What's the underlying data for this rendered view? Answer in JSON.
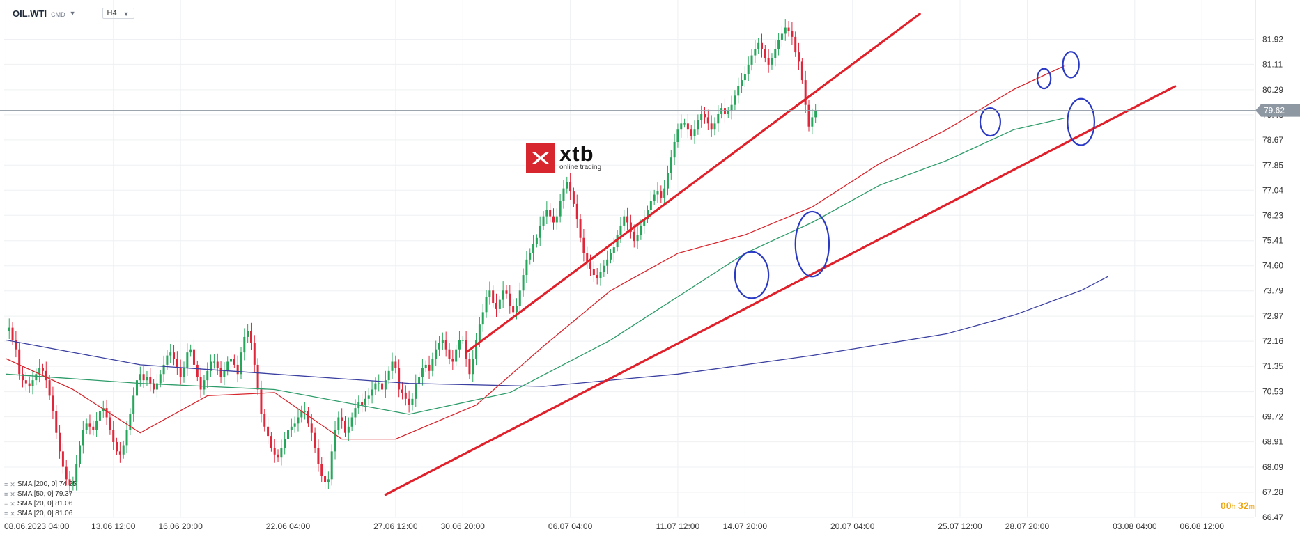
{
  "toolbar": {
    "symbol": "OIL.WTI",
    "symbol_type": "CMD",
    "timeframe": "H4"
  },
  "logo": {
    "name": "xtb",
    "tagline": "online trading"
  },
  "timer": {
    "hours": "00",
    "h_unit": "h",
    "minutes": "32",
    "m_unit": "m"
  },
  "legend": [
    {
      "label": "SMA [200, 0] 74.25",
      "color": "#3a3fa0"
    },
    {
      "label": "SMA [50, 0] 79.37",
      "color": "#2e9c6a"
    },
    {
      "label": "SMA [20, 0] 81.06",
      "color": "#d7262d"
    },
    {
      "label": "SMA [20, 0] 81.06",
      "color": "#d7262d"
    }
  ],
  "colors": {
    "up": "#26a65b",
    "down": "#e0263a",
    "trend": "#e0202a",
    "circle": "#2b3ac4",
    "current": "#8e98a3"
  },
  "chart_data": {
    "type": "candlestick",
    "symbol": "OIL.WTI",
    "timeframe": "H4",
    "ylim": [
      66.47,
      82.74
    ],
    "y_ticks": [
      "81.92",
      "81.11",
      "80.29",
      "79.48",
      "78.67",
      "77.85",
      "77.04",
      "76.23",
      "75.41",
      "74.60",
      "73.79",
      "72.97",
      "72.16",
      "71.35",
      "70.53",
      "69.72",
      "68.91",
      "68.09",
      "67.28",
      "66.47"
    ],
    "x_ticks": [
      "08.06.2023 04:00",
      "13.06 12:00",
      "16.06 20:00",
      "22.06 04:00",
      "27.06 12:00",
      "30.06 20:00",
      "06.07 04:00",
      "11.07 12:00",
      "14.07 20:00",
      "20.07 04:00",
      "25.07 12:00",
      "28.07 20:00",
      "03.08 04:00",
      "06.08 12:00"
    ],
    "x_tick_index": [
      0,
      32,
      52,
      84,
      116,
      136,
      168,
      200,
      220,
      252,
      284,
      304,
      336,
      356
    ],
    "n_slots": 372,
    "current_price": 79.62,
    "closes": [
      72.5,
      72.6,
      72.2,
      71.9,
      71.1,
      70.9,
      70.8,
      70.7,
      70.9,
      71.1,
      71.3,
      71.2,
      70.9,
      70.4,
      69.9,
      69.2,
      68.6,
      68.1,
      67.7,
      67.5,
      67.6,
      68.2,
      68.8,
      69.3,
      69.5,
      69.4,
      69.3,
      69.6,
      69.9,
      70.0,
      69.7,
      69.3,
      68.9,
      68.6,
      68.5,
      68.8,
      69.3,
      69.8,
      70.4,
      70.9,
      71.1,
      70.9,
      71.0,
      70.8,
      70.6,
      70.8,
      71.1,
      71.4,
      71.7,
      71.8,
      71.6,
      71.3,
      71.0,
      71.3,
      71.8,
      71.9,
      71.4,
      71.0,
      70.6,
      70.9,
      71.2,
      71.5,
      71.5,
      71.3,
      71.0,
      71.2,
      71.5,
      71.6,
      71.4,
      71.1,
      71.8,
      72.3,
      72.5,
      72.1,
      71.4,
      70.6,
      69.8,
      69.4,
      69.1,
      68.7,
      68.5,
      68.4,
      68.7,
      69.0,
      69.3,
      69.4,
      69.5,
      69.7,
      69.9,
      69.9,
      69.5,
      69.2,
      68.7,
      68.2,
      67.8,
      67.6,
      67.7,
      68.6,
      69.3,
      69.7,
      69.6,
      69.2,
      69.4,
      69.7,
      70.0,
      70.2,
      70.1,
      70.3,
      70.4,
      70.6,
      70.8,
      70.8,
      70.6,
      70.9,
      71.2,
      71.5,
      71.3,
      70.6,
      70.5,
      70.3,
      70.1,
      70.3,
      70.8,
      71.0,
      71.3,
      71.4,
      71.2,
      71.6,
      71.9,
      72.1,
      72.2,
      71.9,
      71.6,
      71.5,
      71.9,
      72.2,
      72.2,
      71.6,
      71.1,
      71.6,
      72.2,
      72.7,
      73.1,
      73.6,
      73.8,
      73.4,
      73.2,
      73.5,
      73.8,
      73.7,
      73.3,
      73.1,
      73.3,
      73.8,
      74.3,
      74.8,
      75.0,
      75.3,
      75.5,
      75.9,
      76.2,
      76.4,
      76.2,
      76.0,
      76.2,
      76.7,
      77.1,
      77.3,
      77.0,
      76.6,
      76.1,
      75.5,
      75.0,
      74.7,
      74.5,
      74.3,
      74.2,
      74.4,
      74.6,
      74.8,
      75.0,
      75.2,
      75.6,
      75.9,
      76.2,
      76.0,
      75.7,
      75.4,
      75.6,
      75.9,
      76.1,
      76.4,
      76.7,
      76.9,
      77.0,
      76.8,
      77.1,
      77.6,
      78.1,
      78.6,
      79.0,
      79.2,
      79.2,
      79.0,
      78.8,
      79.0,
      79.3,
      79.5,
      79.4,
      79.2,
      79.0,
      79.2,
      79.5,
      79.7,
      79.5,
      79.6,
      79.8,
      80.1,
      80.4,
      80.6,
      80.8,
      81.1,
      81.4,
      81.6,
      81.8,
      81.6,
      81.3,
      81.1,
      81.3,
      81.6,
      81.9,
      82.1,
      82.3,
      82.2,
      82.0,
      81.5,
      81.2,
      80.6,
      79.8,
      79.1,
      79.4,
      79.6,
      79.62
    ],
    "sma200": [
      {
        "i": 0,
        "v": 72.2
      },
      {
        "i": 40,
        "v": 71.4
      },
      {
        "i": 80,
        "v": 71.1
      },
      {
        "i": 120,
        "v": 70.8
      },
      {
        "i": 160,
        "v": 70.7
      },
      {
        "i": 200,
        "v": 71.1
      },
      {
        "i": 240,
        "v": 71.7
      },
      {
        "i": 280,
        "v": 72.4
      },
      {
        "i": 300,
        "v": 73.0
      },
      {
        "i": 320,
        "v": 73.8
      },
      {
        "i": 328,
        "v": 74.25
      }
    ],
    "sma50": [
      {
        "i": 0,
        "v": 71.1
      },
      {
        "i": 40,
        "v": 70.8
      },
      {
        "i": 80,
        "v": 70.6
      },
      {
        "i": 120,
        "v": 69.8
      },
      {
        "i": 150,
        "v": 70.5
      },
      {
        "i": 180,
        "v": 72.2
      },
      {
        "i": 200,
        "v": 73.6
      },
      {
        "i": 220,
        "v": 75.0
      },
      {
        "i": 240,
        "v": 76.0
      },
      {
        "i": 260,
        "v": 77.2
      },
      {
        "i": 280,
        "v": 78.0
      },
      {
        "i": 300,
        "v": 79.0
      },
      {
        "i": 315,
        "v": 79.37
      }
    ],
    "sma20": [
      {
        "i": 0,
        "v": 71.6
      },
      {
        "i": 20,
        "v": 70.6
      },
      {
        "i": 40,
        "v": 69.2
      },
      {
        "i": 60,
        "v": 70.4
      },
      {
        "i": 80,
        "v": 70.5
      },
      {
        "i": 100,
        "v": 69.0
      },
      {
        "i": 116,
        "v": 69.0
      },
      {
        "i": 140,
        "v": 70.1
      },
      {
        "i": 160,
        "v": 72.0
      },
      {
        "i": 180,
        "v": 73.8
      },
      {
        "i": 200,
        "v": 75.0
      },
      {
        "i": 220,
        "v": 75.6
      },
      {
        "i": 240,
        "v": 76.5
      },
      {
        "i": 260,
        "v": 77.9
      },
      {
        "i": 280,
        "v": 79.0
      },
      {
        "i": 300,
        "v": 80.3
      },
      {
        "i": 315,
        "v": 81.06
      }
    ],
    "trendlines": [
      {
        "i1": 113,
        "v1": 67.2,
        "i2": 348,
        "v2": 80.4
      },
      {
        "i1": 137,
        "v1": 71.8,
        "i2": 272,
        "v2": 82.74
      }
    ],
    "circles": [
      {
        "i": 222,
        "v": 74.3,
        "rx": 5,
        "ry": 0.75
      },
      {
        "i": 240,
        "v": 75.3,
        "rx": 5,
        "ry": 1.05
      },
      {
        "i": 293,
        "v": 79.25,
        "rx": 3,
        "ry": 0.45
      },
      {
        "i": 309,
        "v": 80.65,
        "rx": 2,
        "ry": 0.32
      },
      {
        "i": 317,
        "v": 81.1,
        "rx": 2.4,
        "ry": 0.42
      },
      {
        "i": 320,
        "v": 79.25,
        "rx": 4,
        "ry": 0.75
      }
    ]
  }
}
